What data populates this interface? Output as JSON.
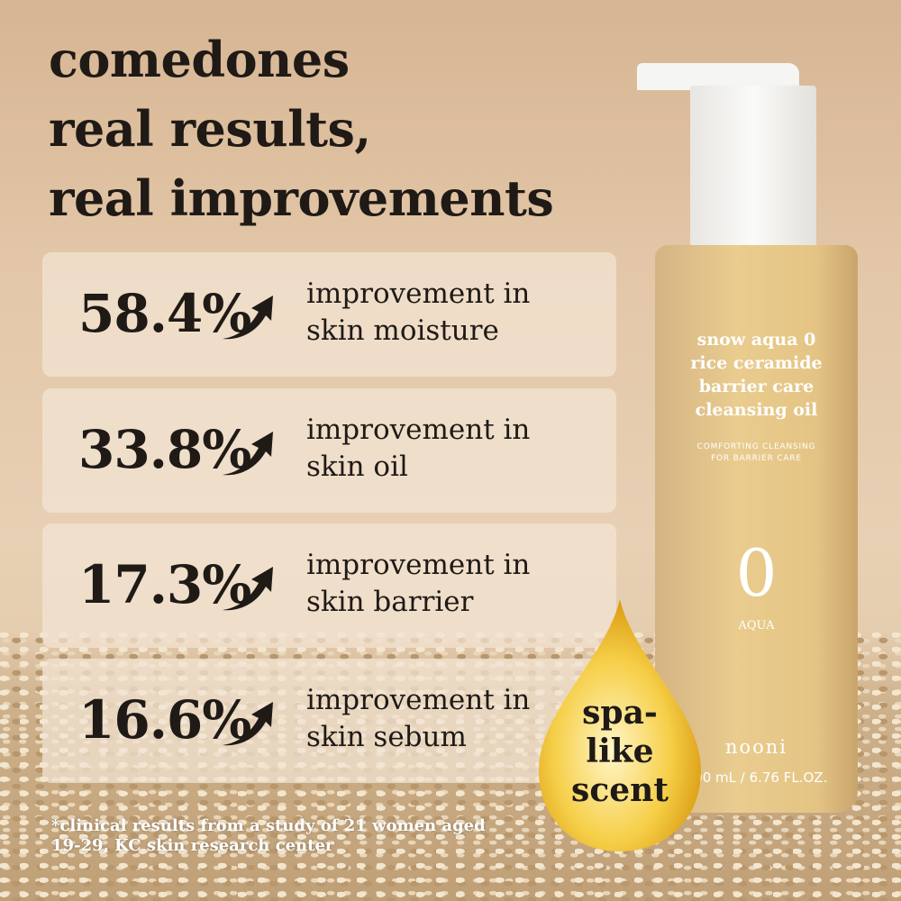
{
  "headline": [
    "comedones",
    "real results,",
    "real improvements"
  ],
  "stats": [
    {
      "value": "58.4%",
      "line1": "improvement in",
      "line2": "skin moisture"
    },
    {
      "value": "33.8%",
      "line1": "improvement in",
      "line2": "skin oil"
    },
    {
      "value": "17.3%",
      "line1": "improvement in",
      "line2": "skin barrier"
    },
    {
      "value": "16.6%",
      "line1": "improvement in",
      "line2": "skin sebum"
    }
  ],
  "footnote": [
    "*clinical results from a study of 21 women aged",
    "19-29, KC skin research center"
  ],
  "bottle": {
    "name": [
      "snow aqua 0",
      "rice ceramide",
      "barrier care",
      "cleansing oil"
    ],
    "subtitle": [
      "COMFORTING CLEANSING",
      "FOR BARRIER CARE"
    ],
    "number": "0",
    "variant": "AQUA",
    "brand": "nooni",
    "volume": "200 mL / 6.76 FL.OZ."
  },
  "badge": [
    "spa-",
    "like",
    "scent"
  ],
  "colors": {
    "text": "#1f1a16",
    "card": "#f2e4d4",
    "oil": "#f0b72a"
  }
}
